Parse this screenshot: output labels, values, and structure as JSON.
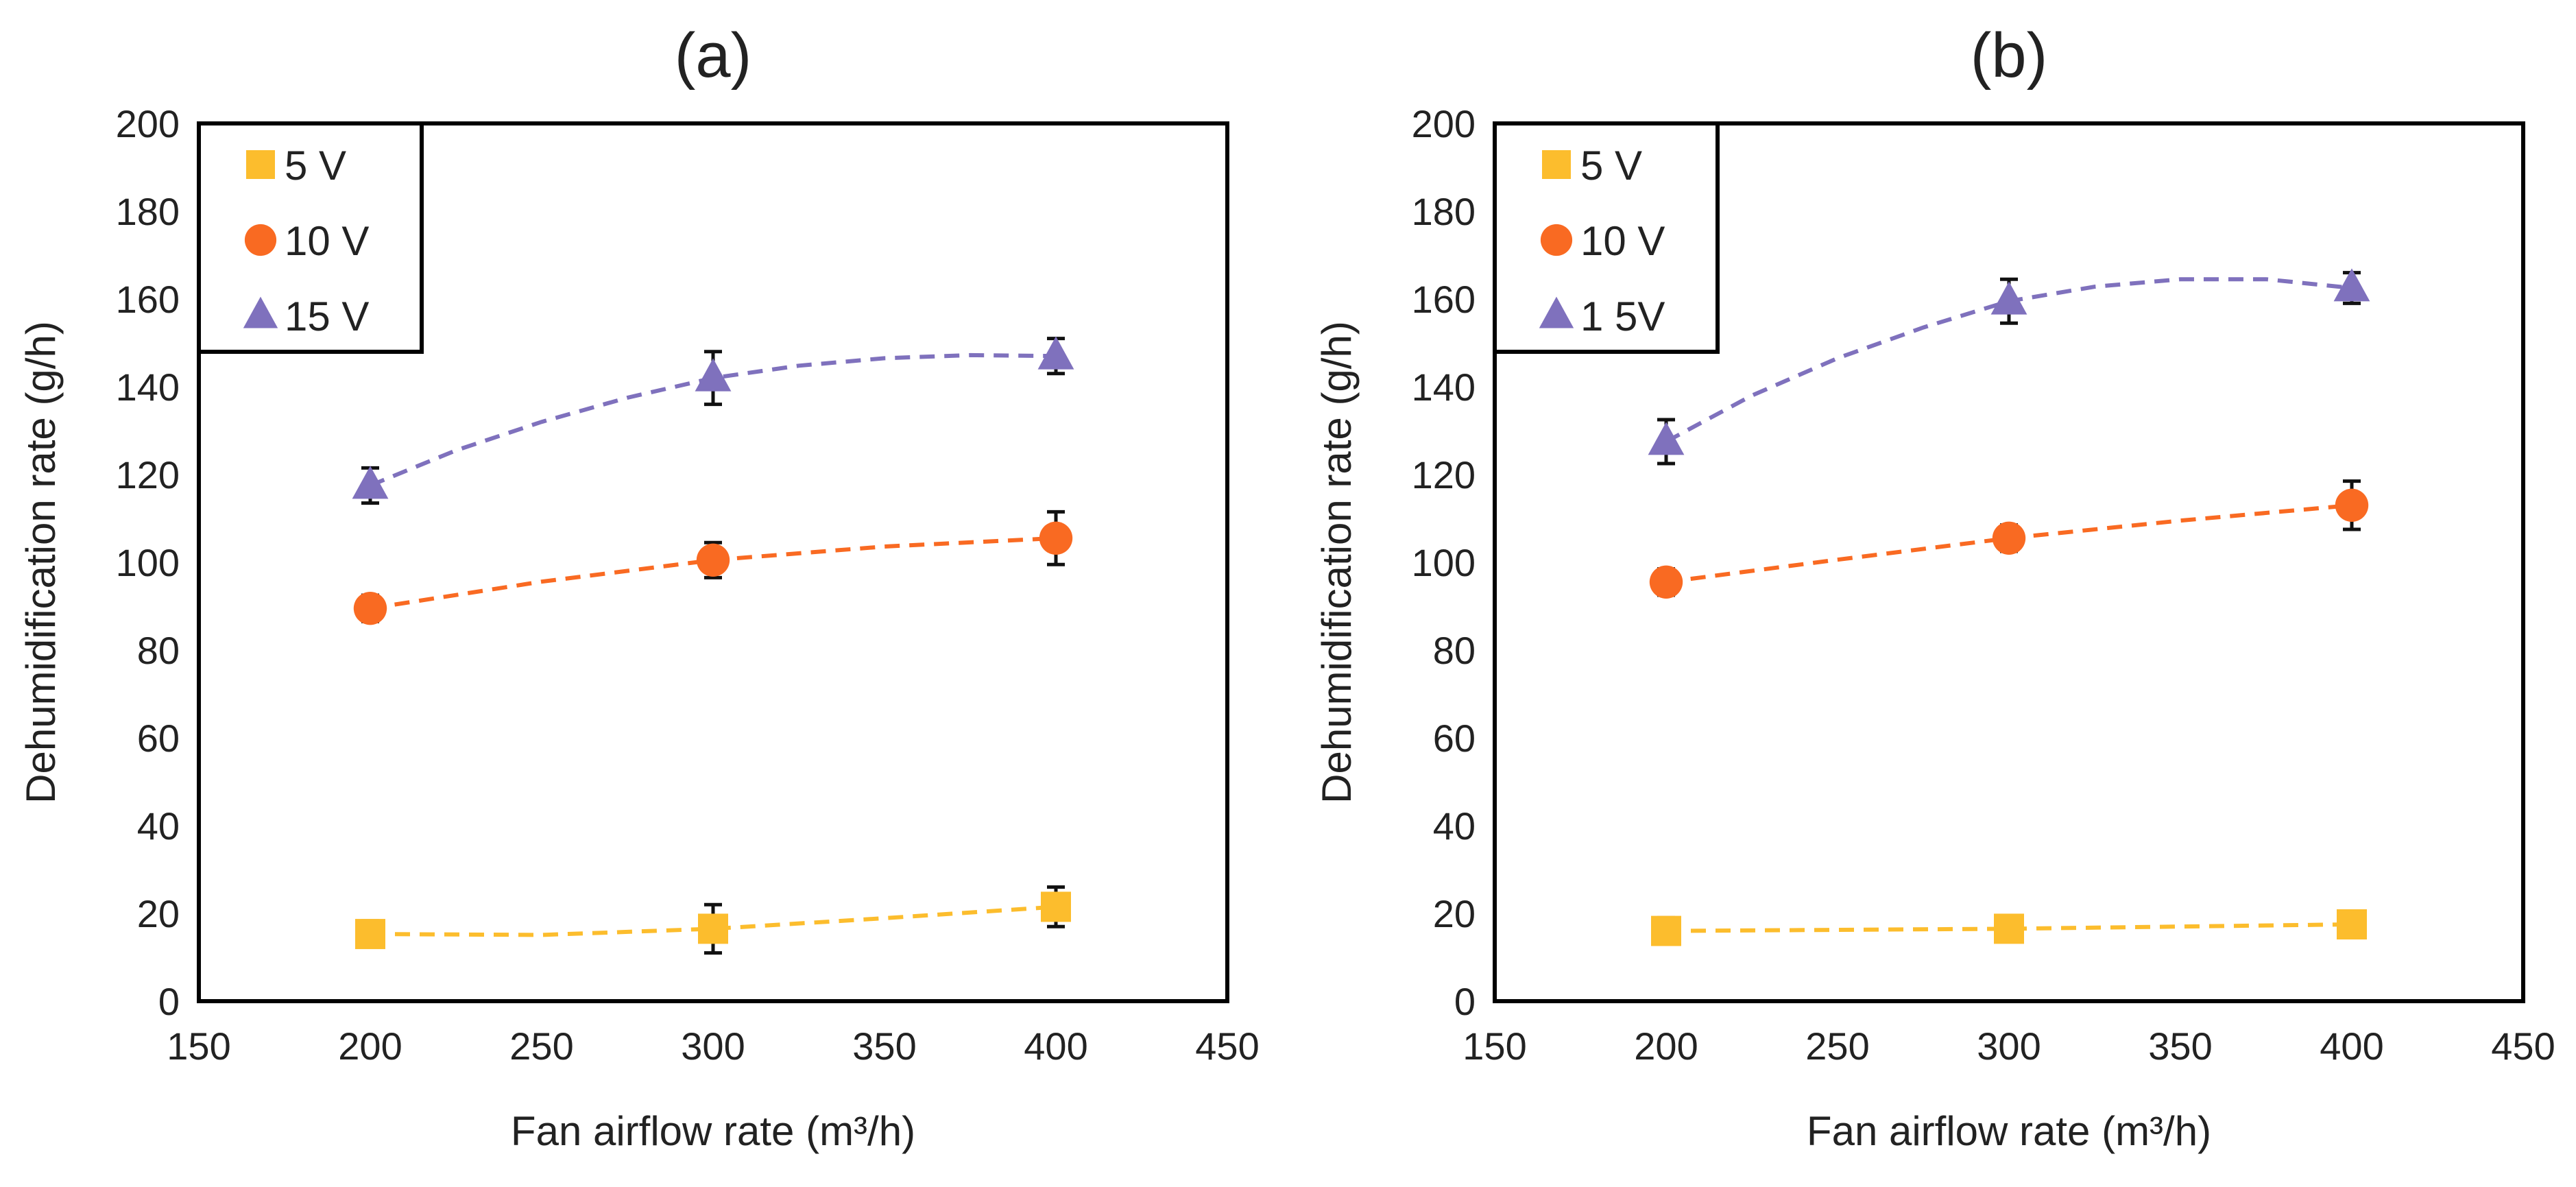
{
  "colors": {
    "v5": "#FCBD2D",
    "v10": "#F96A22",
    "v15": "#7F71BD",
    "axis": "#000000",
    "text": "#222222"
  },
  "chart_data": [
    {
      "type": "scatter",
      "title": "(a)",
      "xlabel": "Fan airflow rate (m³/h)",
      "ylabel": "Dehumidification rate (g/h)",
      "xlim": [
        150,
        450
      ],
      "ylim": [
        0,
        200
      ],
      "xticks": [
        150,
        200,
        250,
        300,
        350,
        400,
        450
      ],
      "yticks": [
        0,
        20,
        40,
        60,
        80,
        100,
        120,
        140,
        160,
        180,
        200
      ],
      "grid": false,
      "legend_position": "top-left",
      "series": [
        {
          "name": "5 V",
          "marker": "square",
          "color_key": "v5",
          "x": [
            200,
            300,
            400
          ],
          "y": [
            15.3,
            16.5,
            21.5
          ],
          "err": [
            3,
            5.5,
            4.5
          ],
          "trend": [
            [
              200,
              15.3
            ],
            [
              250,
              15.1
            ],
            [
              300,
              16.5
            ],
            [
              350,
              18.9
            ],
            [
              400,
              21.5
            ]
          ]
        },
        {
          "name": "10 V",
          "marker": "circle",
          "color_key": "v10",
          "x": [
            200,
            300,
            400
          ],
          "y": [
            89.5,
            100.5,
            105.5
          ],
          "err": [
            3,
            4,
            6
          ],
          "trend": [
            [
              200,
              89.5
            ],
            [
              250,
              95.6
            ],
            [
              300,
              100.5
            ],
            [
              350,
              103.6
            ],
            [
              400,
              105.5
            ]
          ]
        },
        {
          "name": "15 V",
          "marker": "triangle",
          "color_key": "v15",
          "x": [
            200,
            300,
            400
          ],
          "y": [
            117.5,
            142,
            147
          ],
          "err": [
            4,
            6,
            4
          ],
          "trend": [
            [
              200,
              117.5
            ],
            [
              225,
              125.5
            ],
            [
              250,
              132
            ],
            [
              275,
              137.5
            ],
            [
              300,
              142
            ],
            [
              325,
              144.8
            ],
            [
              350,
              146.5
            ],
            [
              375,
              147.2
            ],
            [
              400,
              147
            ]
          ]
        }
      ]
    },
    {
      "type": "scatter",
      "title": "(b)",
      "xlabel": "Fan airflow rate (m³/h)",
      "ylabel": "Dehumidification rate (g/h)",
      "xlim": [
        150,
        450
      ],
      "ylim": [
        0,
        200
      ],
      "xticks": [
        150,
        200,
        250,
        300,
        350,
        400,
        450
      ],
      "yticks": [
        0,
        20,
        40,
        60,
        80,
        100,
        120,
        140,
        160,
        180,
        200
      ],
      "grid": false,
      "legend_position": "top-left",
      "series": [
        {
          "name": "5 V",
          "marker": "square",
          "color_key": "v5",
          "x": [
            200,
            300,
            400
          ],
          "y": [
            16,
            16.5,
            17.5
          ],
          "err": [
            3,
            2.5,
            2.5
          ],
          "trend": [
            [
              200,
              16
            ],
            [
              300,
              16.5
            ],
            [
              400,
              17.5
            ]
          ]
        },
        {
          "name": "10 V",
          "marker": "circle",
          "color_key": "v10",
          "x": [
            200,
            300,
            400
          ],
          "y": [
            95.5,
            105.5,
            113
          ],
          "err": [
            3,
            3,
            5.5
          ],
          "trend": [
            [
              200,
              95.5
            ],
            [
              250,
              100.6
            ],
            [
              300,
              105.5
            ],
            [
              350,
              109.5
            ],
            [
              400,
              113
            ]
          ]
        },
        {
          "name": "1 5V",
          "marker": "triangle",
          "color_key": "v15",
          "x": [
            200,
            300,
            400
          ],
          "y": [
            127.5,
            159.5,
            162.5
          ],
          "err": [
            5,
            5,
            3.5
          ],
          "trend": [
            [
              200,
              127.5
            ],
            [
              225,
              138
            ],
            [
              250,
              146.5
            ],
            [
              275,
              153.5
            ],
            [
              300,
              159.5
            ],
            [
              325,
              162.8
            ],
            [
              350,
              164.5
            ],
            [
              375,
              164.5
            ],
            [
              400,
              162.5
            ]
          ]
        }
      ]
    }
  ]
}
